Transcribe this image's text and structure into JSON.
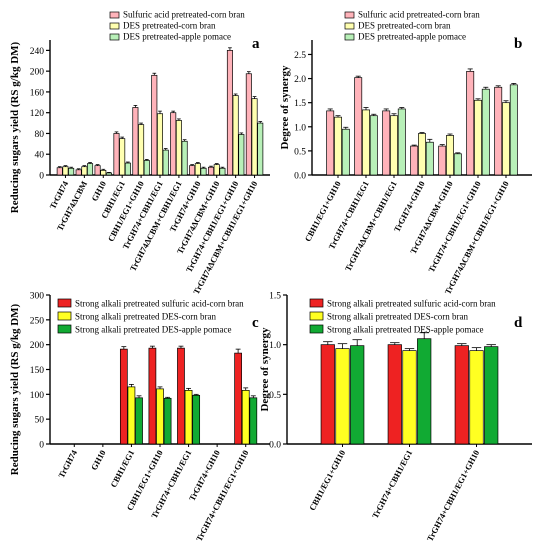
{
  "chart_data": [
    {
      "panel": "a",
      "type": "bar",
      "ylabel": "Reducing sugars yield (RS g/kg DM)",
      "ylim": [
        0,
        260
      ],
      "yticks": [
        0,
        40,
        80,
        120,
        160,
        200,
        240
      ],
      "legend_position": "top",
      "categories": [
        "TrGH74",
        "TrGH74ΔCBM",
        "GH10",
        "CBH1/EG1",
        "CBH1/EG1+GH10",
        "TrGH74+CBH1/EG1",
        "TrGH74ΔCBM+CBH1/EG1",
        "TrGH74+GH10",
        "TrGH74ΔCBM+GH10",
        "TrGH74+CBH1/EG1+GH10",
        "TrGH74ΔCBM+CBH1/EG1+GH10"
      ],
      "series": [
        {
          "name": "Sulfuric acid pretreated-corn bran",
          "color": "#ffb3ba",
          "values": [
            14,
            10,
            18,
            80,
            130,
            192,
            120,
            18,
            15,
            240,
            195
          ],
          "errors": [
            2,
            2,
            2,
            3,
            4,
            4,
            3,
            2,
            2,
            5,
            4
          ]
        },
        {
          "name": "DES pretreated-corn bran",
          "color": "#ffffb0",
          "values": [
            16,
            16,
            9,
            70,
            97,
            118,
            105,
            22,
            20,
            153,
            147
          ],
          "errors": [
            2,
            2,
            2,
            3,
            3,
            5,
            3,
            2,
            2,
            3,
            4
          ]
        },
        {
          "name": "DES pretreated-apple pomace",
          "color": "#b8f0b8",
          "values": [
            13,
            22,
            4,
            23,
            28,
            48,
            65,
            13,
            13,
            78,
            100
          ],
          "errors": [
            2,
            2,
            1,
            2,
            2,
            3,
            3,
            2,
            2,
            3,
            3
          ]
        }
      ]
    },
    {
      "panel": "b",
      "type": "bar",
      "ylabel": "Degree of synergy",
      "ylim": [
        0,
        2.8
      ],
      "yticks": [
        0.0,
        0.5,
        1.0,
        1.5,
        2.0,
        2.5
      ],
      "legend_position": "top",
      "categories": [
        "CBH1/EG1+GH10",
        "TrGH74+CBH1/EG1",
        "TrGH74ΔCBM+CBH1/EG1",
        "TrGH74+GH10",
        "TrGH74ΔCBM+GH10",
        "TrGH74+CBH1/EG1+GH10",
        "TrGH74ΔCBM+CBH1/EG1+GH10"
      ],
      "series": [
        {
          "name": "Sulfuric acid pretreated-corn bran",
          "color": "#ffb3ba",
          "values": [
            1.33,
            2.02,
            1.33,
            0.6,
            0.6,
            2.15,
            1.82
          ],
          "errors": [
            0.04,
            0.03,
            0.04,
            0.02,
            0.03,
            0.05,
            0.03
          ]
        },
        {
          "name": "DES pretreated-corn bran",
          "color": "#ffffb0",
          "values": [
            1.2,
            1.35,
            1.23,
            0.86,
            0.82,
            1.55,
            1.5
          ],
          "errors": [
            0.03,
            0.05,
            0.04,
            0.02,
            0.03,
            0.03,
            0.04
          ]
        },
        {
          "name": "DES pretreated-apple pomace",
          "color": "#b8f0b8",
          "values": [
            0.95,
            1.23,
            1.37,
            0.68,
            0.44,
            1.78,
            1.87
          ],
          "errors": [
            0.04,
            0.03,
            0.03,
            0.06,
            0.02,
            0.04,
            0.03
          ]
        }
      ]
    },
    {
      "panel": "c",
      "type": "bar",
      "ylabel": "Reducing sugars yield (RS g/kg DM)",
      "ylim": [
        0,
        300
      ],
      "yticks": [
        0,
        50,
        100,
        150,
        200,
        250,
        300
      ],
      "legend_position": "top",
      "categories": [
        "TrGH74",
        "GH10",
        "CBH1/EG1",
        "CBH1/EG1+GH10",
        "TrGH74+CBH1/EG1",
        "TrGH74+GH10",
        "TrGH74+CBH1/EG1+GH10"
      ],
      "series": [
        {
          "name": "Strong alkali pretreated sulfuric acid-corn bran",
          "color": "#ee2222",
          "values": [
            0,
            0,
            191,
            193,
            193,
            0,
            183
          ],
          "errors": [
            0,
            0,
            5,
            4,
            4,
            0,
            8
          ]
        },
        {
          "name": "Strong alkali pretreated DES-corn bran",
          "color": "#ffff22",
          "values": [
            0,
            0,
            115,
            111,
            108,
            0,
            108
          ],
          "errors": [
            0,
            0,
            5,
            4,
            4,
            0,
            5
          ]
        },
        {
          "name": "Strong alkali pretreated DES-apple pomace",
          "color": "#11aa33",
          "values": [
            0,
            0,
            93,
            92,
            98,
            0,
            93
          ],
          "errors": [
            0,
            0,
            4,
            2,
            2,
            0,
            4
          ]
        }
      ]
    },
    {
      "panel": "d",
      "type": "bar",
      "ylabel": "Degree of synergy",
      "ylim": [
        0,
        1.5
      ],
      "yticks": [
        0.0,
        0.5,
        1.0,
        1.5
      ],
      "legend_position": "top",
      "categories": [
        "CBH1/EG1+GH10",
        "TrGH74+CBH1/EG1",
        "TrGH74+CBH1/EG1+GH10"
      ],
      "series": [
        {
          "name": "Strong alkali pretreated sulfuric acid-corn bran",
          "color": "#ee2222",
          "values": [
            1.0,
            1.0,
            0.99
          ],
          "errors": [
            0.03,
            0.02,
            0.02
          ]
        },
        {
          "name": "Strong alkali pretreated DES-corn bran",
          "color": "#ffff22",
          "values": [
            0.96,
            0.94,
            0.94
          ],
          "errors": [
            0.05,
            0.02,
            0.03
          ]
        },
        {
          "name": "Strong alkali pretreated DES-apple pomace",
          "color": "#11aa33",
          "values": [
            0.99,
            1.06,
            0.98
          ],
          "errors": [
            0.06,
            0.06,
            0.02
          ]
        }
      ]
    }
  ]
}
